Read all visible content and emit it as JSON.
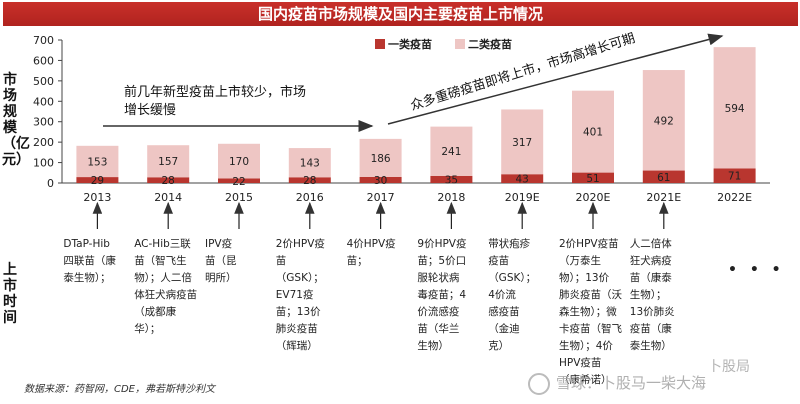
{
  "header": {
    "title": "国内疫苗市场规模及国内主要疫苗上市情况"
  },
  "left_labels": {
    "market_size": "市场规模（亿元）",
    "launch_time": "上市时间"
  },
  "chart_data": {
    "type": "bar",
    "stacked": true,
    "categories": [
      "2013",
      "2014",
      "2015",
      "2016",
      "2017",
      "2018",
      "2019E",
      "2020E",
      "2021E",
      "2022E"
    ],
    "series": [
      {
        "name": "一类疫苗",
        "values": [
          29,
          28,
          22,
          28,
          30,
          35,
          43,
          51,
          61,
          71
        ],
        "color": "#b9362f"
      },
      {
        "name": "二类疫苗",
        "values": [
          153,
          157,
          170,
          143,
          186,
          241,
          317,
          401,
          492,
          594
        ],
        "color": "#eec6c4"
      }
    ],
    "yticks": [
      "0",
      "100",
      "200",
      "300",
      "400",
      "500",
      "600",
      "700"
    ],
    "ylim": [
      0,
      700
    ],
    "legend_position": "top",
    "annotations": [
      {
        "text": "前几年新型疫苗上市较少，市场增长缓慢"
      },
      {
        "text": "众多重磅疫苗即将上市，市场高增长可期"
      }
    ]
  },
  "events": [
    "DTaP-Hib\n四联苗（康\n泰生物）；",
    "AC-Hib三联\n苗（智飞生\n物）；人二倍\n体狂犬病疫苗\n（成都康\n华）；",
    "IPV疫\n苗（昆\n明所）",
    "2价HPV疫\n苗\n（GSK）；\nEV71疫\n苗；13价\n肺炎疫苗\n（辉瑞）",
    "4价HPV疫\n苗；",
    "9价HPV疫\n苗；5价口\n服轮状病\n毒疫苗；4\n价流感疫\n苗（华兰\n生物）",
    "带状疱疹\n疫苗\n（GSK）；\n4价流\n感疫苗\n（金迪\n克）",
    "2价HPV疫苗\n（万泰生\n物）；13价\n肺炎疫苗（沃\n森生物）；微\n卡疫苗（智飞\n生物）；4价\nHPV疫苗\n（康希诺）",
    "人二倍体\n狂犬病疫\n苗（康泰\n生物）；\n13价肺炎\n疫苗（康\n泰生物）"
  ],
  "ellipsis": "• • •",
  "source": "数据来源：药智网，CDE，弗若斯特沙利文",
  "watermark": {
    "text": "雪球：卜股马一柴大海",
    "secondary": "卜股局"
  }
}
